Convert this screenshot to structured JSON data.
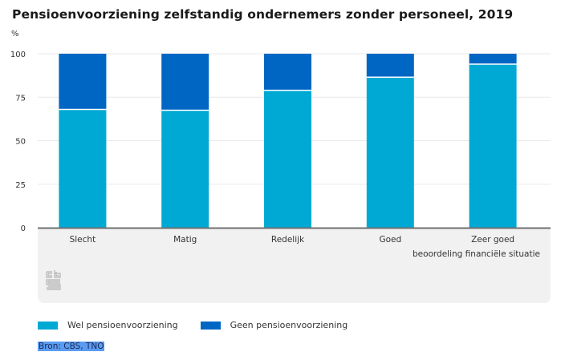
{
  "title": "Pensioenvoorziening zelfstandig ondernemers zonder personeel, 2019",
  "unit_label": "%",
  "source": "Bron: CBS, TNO",
  "logo": "cbs-logo",
  "colors": {
    "wel": "#00a9d4",
    "geen": "#0066c4",
    "axis": "#707070",
    "grid": "#e8e8e8",
    "panel": "#f1f1f1"
  },
  "legend": [
    {
      "label": "Wel pensioenvoorziening",
      "color": "#00a9d4"
    },
    {
      "label": "Geen pensioenvoorziening",
      "color": "#0066c4"
    }
  ],
  "chart_data": {
    "type": "bar",
    "stacked": true,
    "title": "Pensioenvoorziening zelfstandig ondernemers zonder personeel, 2019",
    "xlabel": "beoordeling financiële situatie",
    "ylabel": "%",
    "ylim": [
      0,
      100
    ],
    "yticks": [
      0,
      25,
      50,
      75,
      100
    ],
    "grid": true,
    "legend_position": "bottom-left",
    "categories": [
      "Slecht",
      "Matig",
      "Redelijk",
      "Goed",
      "Zeer goed"
    ],
    "series": [
      {
        "name": "Wel pensioenvoorziening",
        "values": [
          68,
          67.5,
          79,
          86.5,
          94
        ]
      },
      {
        "name": "Geen pensioenvoorziening",
        "values": [
          32,
          32.5,
          21,
          13.5,
          6
        ]
      }
    ]
  }
}
